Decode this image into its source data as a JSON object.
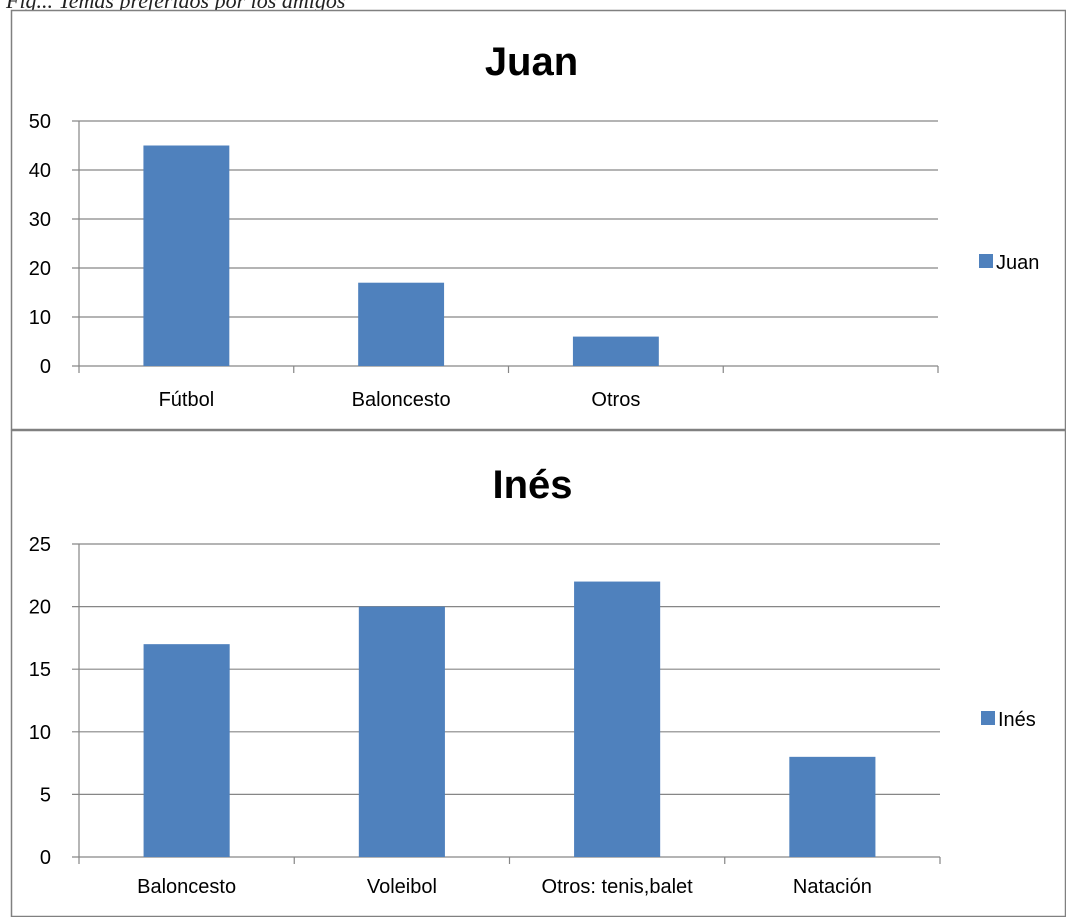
{
  "caption": "Fig... Temas preferidos por los amigos",
  "colors": {
    "bar": "#4F81BD",
    "grid": "#868686",
    "border": "#808080"
  },
  "chart_data": [
    {
      "type": "bar",
      "title": "Juan",
      "xlabel": "",
      "ylabel": "",
      "categories": [
        "Fútbol",
        "Baloncesto",
        "Otros",
        ""
      ],
      "series": [
        {
          "name": "Juan",
          "values": [
            45,
            17,
            6,
            null
          ]
        }
      ],
      "ylim": [
        0,
        50
      ],
      "yticks": [
        0,
        10,
        20,
        30,
        40,
        50
      ],
      "grid": true,
      "legend": "right"
    },
    {
      "type": "bar",
      "title": "Inés",
      "xlabel": "",
      "ylabel": "",
      "categories": [
        "Baloncesto",
        "Voleibol",
        "Otros: tenis,balet",
        "Natación"
      ],
      "series": [
        {
          "name": "Inés",
          "values": [
            17,
            20,
            22,
            8
          ]
        }
      ],
      "ylim": [
        0,
        25
      ],
      "yticks": [
        0,
        5,
        10,
        15,
        20,
        25
      ],
      "grid": true,
      "legend": "right"
    }
  ]
}
